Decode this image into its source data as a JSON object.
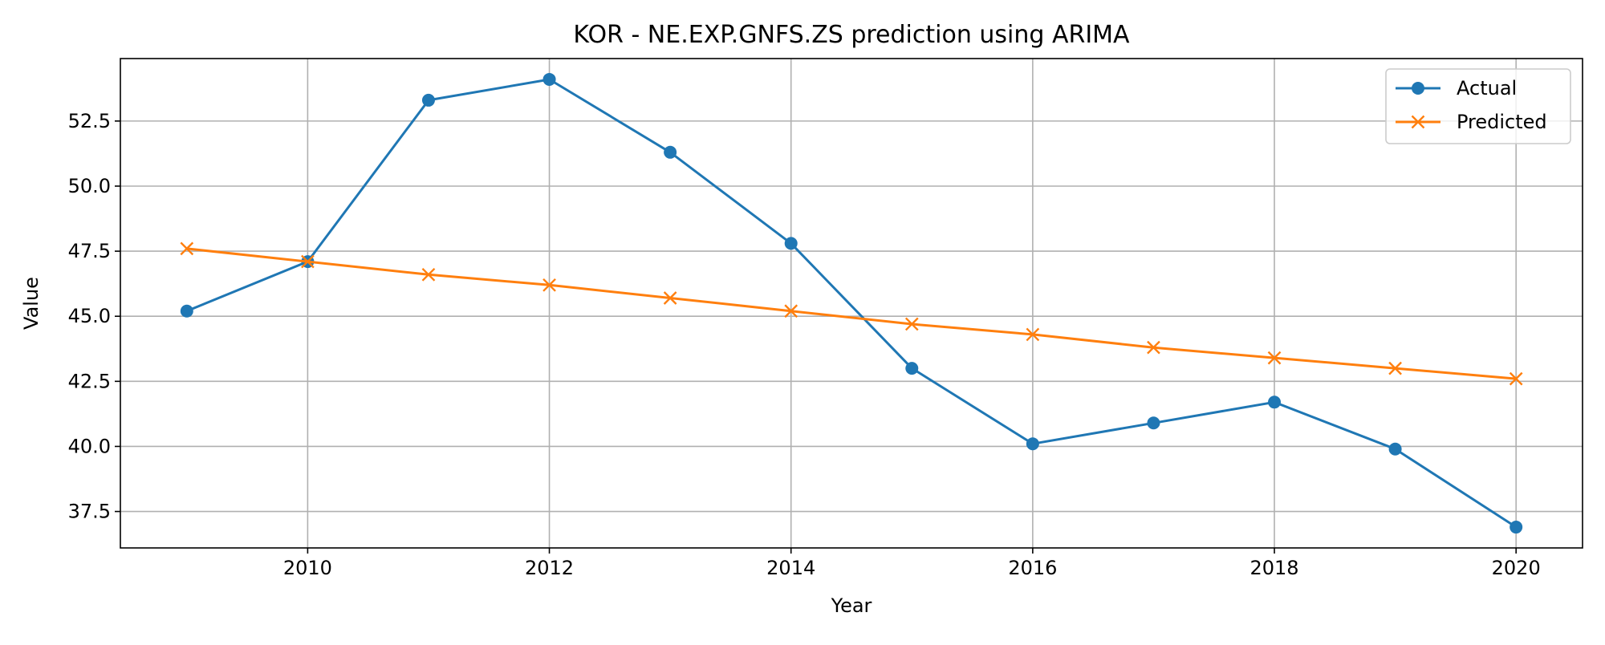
{
  "chart_data": {
    "type": "line",
    "title": "KOR - NE.EXP.GNFS.ZS prediction using ARIMA",
    "xlabel": "Year",
    "ylabel": "Value",
    "x": [
      2009,
      2010,
      2011,
      2012,
      2013,
      2014,
      2015,
      2016,
      2017,
      2018,
      2019,
      2020
    ],
    "xlim": [
      2008.45,
      2020.55
    ],
    "ylim": [
      36.1,
      54.9
    ],
    "xticks": [
      2010,
      2012,
      2014,
      2016,
      2018,
      2020
    ],
    "yticks": [
      37.5,
      40.0,
      42.5,
      45.0,
      47.5,
      50.0,
      52.5
    ],
    "ytick_labels": [
      "37.5",
      "40.0",
      "42.5",
      "45.0",
      "47.5",
      "50.0",
      "52.5"
    ],
    "grid": true,
    "legend_position": "top-right",
    "series": [
      {
        "name": "Actual",
        "color": "#1f77b4",
        "marker": "circle",
        "values": [
          45.2,
          47.1,
          53.3,
          54.1,
          51.3,
          47.8,
          43.0,
          40.1,
          40.9,
          41.7,
          39.9,
          36.9
        ]
      },
      {
        "name": "Predicted",
        "color": "#ff7f0e",
        "marker": "x",
        "values": [
          47.6,
          47.1,
          46.6,
          46.2,
          45.7,
          45.2,
          44.7,
          44.3,
          43.8,
          43.4,
          43.0,
          42.6
        ]
      }
    ]
  }
}
